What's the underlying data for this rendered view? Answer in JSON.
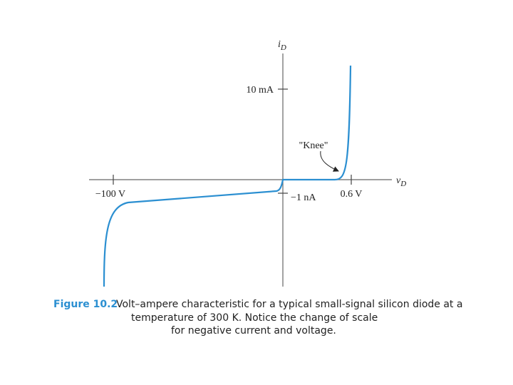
{
  "axes": {
    "y_label": "i",
    "y_label_sub": "D",
    "x_label": "v",
    "x_label_sub": "D"
  },
  "ticks": {
    "y_positive": "10 mA",
    "y_negative": "−1 nA",
    "x_negative": "−100 V",
    "x_positive": "0.6 V"
  },
  "annotation": "\"Knee\"",
  "caption": {
    "label": "Figure 10.2",
    "lines": [
      "Volt–ampere characteristic for a typical small-signal silicon diode at a",
      "temperature of 300 K. Notice the change of scale",
      "for negative current and voltage."
    ]
  }
}
